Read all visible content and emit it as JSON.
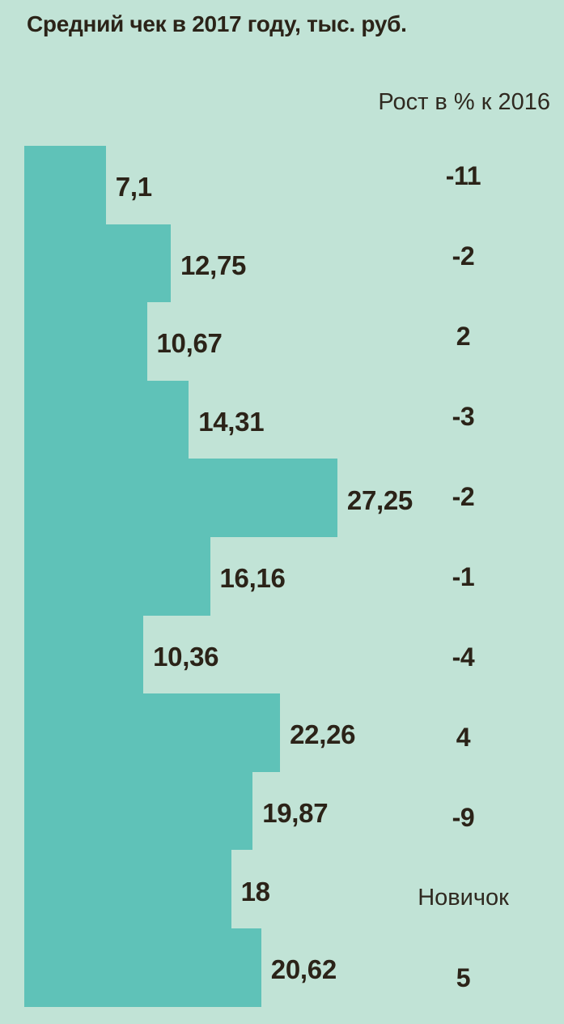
{
  "title": "Средний чек в 2017 году, тыс. руб.",
  "growth_header": "Рост в % к 2016",
  "colors": {
    "background": "#c1e3d6",
    "bar": "#5fc2b8",
    "text": "#2b2318"
  },
  "chart_data": {
    "type": "bar",
    "orientation": "horizontal",
    "title": "Средний чек в 2017 году, тыс. руб.",
    "value_unit": "тыс. руб.",
    "secondary_column_header": "Рост в % к 2016",
    "value_axis_range": [
      0,
      30
    ],
    "grid": false,
    "legend": false,
    "rows": [
      {
        "value": 7.1,
        "value_label": "7,1",
        "growth_label": "-11"
      },
      {
        "value": 12.75,
        "value_label": "12,75",
        "growth_label": "-2"
      },
      {
        "value": 10.67,
        "value_label": "10,67",
        "growth_label": "2"
      },
      {
        "value": 14.31,
        "value_label": "14,31",
        "growth_label": "-3"
      },
      {
        "value": 27.25,
        "value_label": "27,25",
        "growth_label": "-2"
      },
      {
        "value": 16.16,
        "value_label": "16,16",
        "growth_label": "-1"
      },
      {
        "value": 10.36,
        "value_label": "10,36",
        "growth_label": "-4"
      },
      {
        "value": 22.26,
        "value_label": "22,26",
        "growth_label": "4"
      },
      {
        "value": 19.87,
        "value_label": "19,87",
        "growth_label": "-9"
      },
      {
        "value": 18,
        "value_label": "18",
        "growth_label": "Новичок"
      },
      {
        "value": 20.62,
        "value_label": "20,62",
        "growth_label": "5"
      }
    ]
  }
}
